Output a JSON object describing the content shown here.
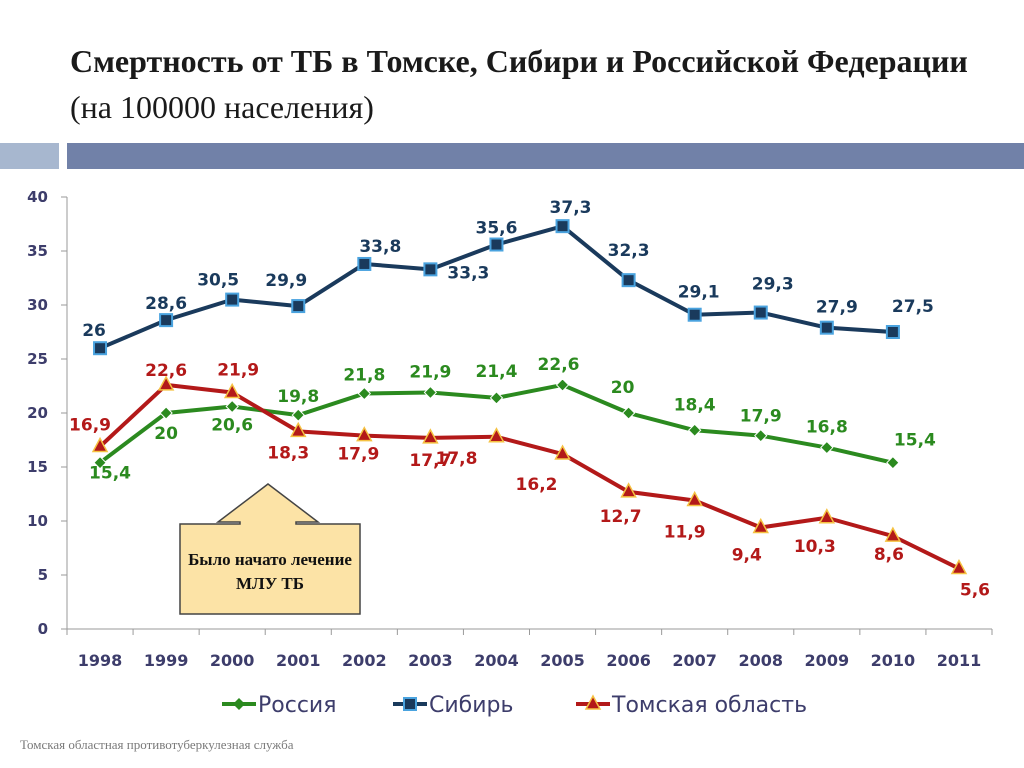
{
  "slide": {
    "title_bold": "Смертность от ТБ в Томске, Сибири и Российской Федерации",
    "title_sub": "(на 100000 населения)",
    "callout": "Было начато лечение МЛУ ТБ",
    "footer": "Томская областная противотуберкулезная служба"
  },
  "colors": {
    "russia": "#2b8a1f",
    "siberia": "#1a3a5c",
    "tomsk": "#b31919",
    "band_light": "#a7b7cf",
    "band_dark": "#7181a8",
    "callout_fill": "#fce3a6"
  },
  "chart_data": {
    "type": "line",
    "title": "",
    "xlabel": "",
    "ylabel": "",
    "ylim": [
      0,
      40
    ],
    "yticks": [
      0,
      5,
      10,
      15,
      20,
      25,
      30,
      35,
      40
    ],
    "categories": [
      "1998",
      "1999",
      "2000",
      "2001",
      "2002",
      "2003",
      "2004",
      "2005",
      "2006",
      "2007",
      "2008",
      "2009",
      "2010",
      "2011"
    ],
    "legend_position": "bottom",
    "grid": false,
    "series": [
      {
        "name": "Россия",
        "key": "russia",
        "marker": "diamond",
        "values": [
          15.4,
          20,
          20.6,
          19.8,
          21.8,
          21.9,
          21.4,
          22.6,
          20,
          18.4,
          17.9,
          16.8,
          15.4,
          null
        ],
        "labels": [
          "15,4",
          "20",
          "20,6",
          "19,8",
          "21,8",
          "21,9",
          "21,4",
          "22,6",
          "20",
          "18,4",
          "17,9",
          "16,8",
          "15,4",
          ""
        ]
      },
      {
        "name": "Сибирь",
        "key": "siberia",
        "marker": "square",
        "values": [
          26,
          28.6,
          30.5,
          29.9,
          33.8,
          33.3,
          35.6,
          37.3,
          32.3,
          29.1,
          29.3,
          27.9,
          27.5,
          null
        ],
        "labels": [
          "26",
          "28,6",
          "30,5",
          "29,9",
          "33,8",
          "33,3",
          "35,6",
          "37,3",
          "32,3",
          "29,1",
          "29,3",
          "27,9",
          "27,5",
          ""
        ]
      },
      {
        "name": "Томская область",
        "key": "tomsk",
        "marker": "triangle",
        "values": [
          16.9,
          22.6,
          21.9,
          18.3,
          17.9,
          17.7,
          17.8,
          16.2,
          12.7,
          11.9,
          9.4,
          10.3,
          8.6,
          5.6
        ],
        "labels": [
          "16,9",
          "22,6",
          "21,9",
          "18,3",
          "17,9",
          "17,7",
          "17,8",
          "16,2",
          "12,7",
          "11,9",
          "9,4",
          "10,3",
          "8,6",
          "5,6"
        ]
      }
    ]
  }
}
